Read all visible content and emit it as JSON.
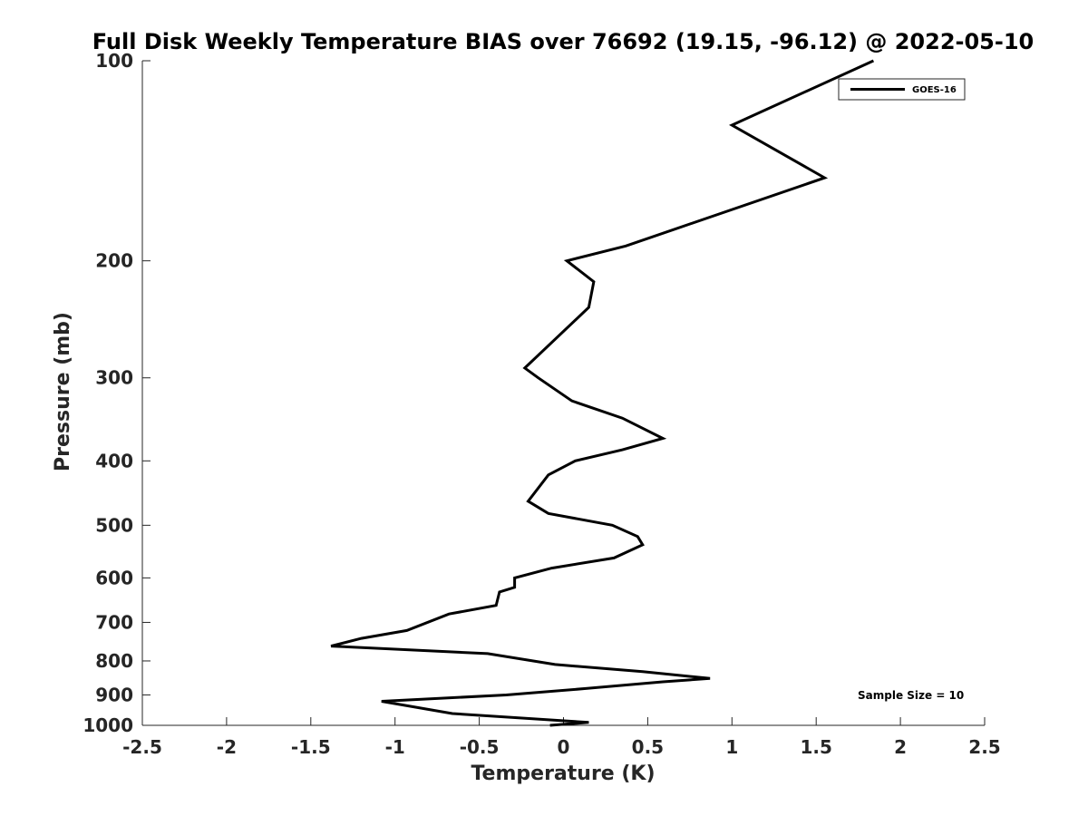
{
  "chart_data": {
    "type": "line",
    "title": "Full Disk Weekly Temperature BIAS over 76692 (19.15, -96.12) @ 2022-05-10",
    "xlabel": "Temperature (K)",
    "ylabel": "Pressure (mb)",
    "xlim": [
      -2.5,
      2.5
    ],
    "ylim": [
      100,
      1000
    ],
    "y_scale": "log",
    "y_reversed": true,
    "x_ticks": [
      "-2.5",
      "-2",
      "-1.5",
      "-1",
      "-0.5",
      "0",
      "0.5",
      "1",
      "1.5",
      "2",
      "2.5"
    ],
    "y_ticks": [
      "100",
      "200",
      "300",
      "400",
      "500",
      "600",
      "700",
      "800",
      "900",
      "1000"
    ],
    "grid": false,
    "legend_position": "top-right",
    "annotation": "Sample Size = 10",
    "series": [
      {
        "name": "GOES-16",
        "color": "#000000",
        "points": [
          {
            "x": 1.84,
            "p": 100
          },
          {
            "x": 1.0,
            "p": 125
          },
          {
            "x": 1.55,
            "p": 150
          },
          {
            "x": 0.37,
            "p": 190
          },
          {
            "x": 0.02,
            "p": 200
          },
          {
            "x": 0.18,
            "p": 215
          },
          {
            "x": 0.15,
            "p": 235
          },
          {
            "x": -0.23,
            "p": 290
          },
          {
            "x": -0.15,
            "p": 300
          },
          {
            "x": 0.05,
            "p": 325
          },
          {
            "x": 0.35,
            "p": 345
          },
          {
            "x": 0.59,
            "p": 370
          },
          {
            "x": 0.35,
            "p": 385
          },
          {
            "x": 0.07,
            "p": 400
          },
          {
            "x": -0.09,
            "p": 420
          },
          {
            "x": -0.21,
            "p": 460
          },
          {
            "x": -0.09,
            "p": 480
          },
          {
            "x": 0.29,
            "p": 500
          },
          {
            "x": 0.44,
            "p": 520
          },
          {
            "x": 0.47,
            "p": 535
          },
          {
            "x": 0.3,
            "p": 560
          },
          {
            "x": -0.07,
            "p": 580
          },
          {
            "x": -0.29,
            "p": 600
          },
          {
            "x": -0.29,
            "p": 620
          },
          {
            "x": -0.38,
            "p": 630
          },
          {
            "x": -0.4,
            "p": 660
          },
          {
            "x": -0.68,
            "p": 680
          },
          {
            "x": -0.93,
            "p": 720
          },
          {
            "x": -1.2,
            "p": 740
          },
          {
            "x": -1.38,
            "p": 760
          },
          {
            "x": -0.45,
            "p": 780
          },
          {
            "x": -0.05,
            "p": 810
          },
          {
            "x": 0.47,
            "p": 830
          },
          {
            "x": 0.87,
            "p": 850
          },
          {
            "x": 0.59,
            "p": 860
          },
          {
            "x": 0.14,
            "p": 880
          },
          {
            "x": -0.34,
            "p": 900
          },
          {
            "x": -1.08,
            "p": 920
          },
          {
            "x": -0.66,
            "p": 960
          },
          {
            "x": 0.15,
            "p": 990
          },
          {
            "x": -0.08,
            "p": 1000
          }
        ]
      }
    ]
  }
}
